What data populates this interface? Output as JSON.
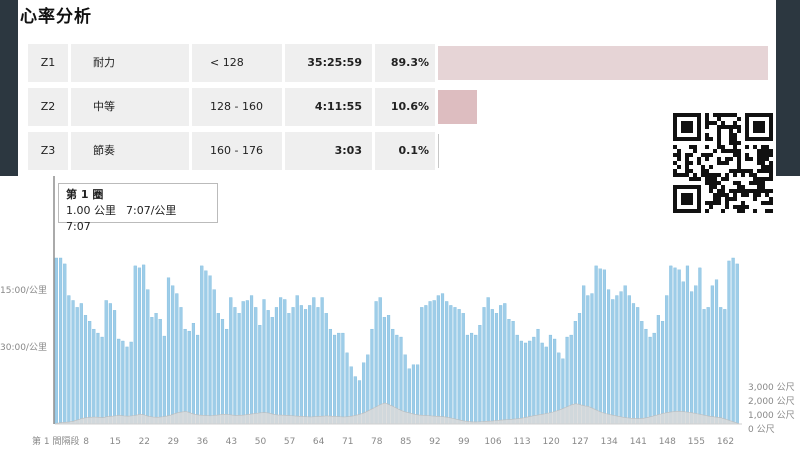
{
  "section_title": "心率分析",
  "zones": [
    {
      "zone": "Z1",
      "name": "耐力",
      "range": "< 128",
      "time": "35:25:59",
      "percent": "89.3%",
      "share": 0.893
    },
    {
      "zone": "Z2",
      "name": "中等",
      "range": "128 - 160",
      "time": "4:11:55",
      "percent": "10.6%",
      "share": 0.106
    },
    {
      "zone": "Z3",
      "name": "節奏",
      "range": "160 - 176",
      "time": "3:03",
      "percent": "0.1%",
      "share": 0.001
    }
  ],
  "tooltip": {
    "title": "第 1 圈",
    "distance": "1.00 公里",
    "pace": "7:07/公里",
    "time": "7:07"
  },
  "colors": {
    "bar": "#9ecde8",
    "bar_edge": "#6fb3da",
    "elevation": "#d9d9d9",
    "frame": "#2c3740"
  },
  "chart_data": {
    "type": "bar",
    "y_axis_left_labels": [
      "15:00/公里",
      "30:00/公里"
    ],
    "y_axis_right_labels": [
      "3,000 公尺",
      "2,000 公尺",
      "1,000 公尺",
      "0 公尺"
    ],
    "x_first_label": "第 1 間隔段",
    "x_tick_labels": [
      "8",
      "15",
      "22",
      "29",
      "36",
      "43",
      "50",
      "57",
      "64",
      "71",
      "78",
      "85",
      "92",
      "99",
      "106",
      "113",
      "120",
      "127",
      "134",
      "141",
      "148",
      "155",
      "162"
    ],
    "x_tick_values": [
      8,
      15,
      22,
      29,
      36,
      43,
      50,
      57,
      64,
      71,
      78,
      85,
      92,
      99,
      106,
      113,
      120,
      127,
      134,
      141,
      148,
      155,
      162
    ],
    "ylim_elevation": [
      0,
      3000
    ],
    "series": [
      {
        "values": [
          168,
          168,
          162,
          130,
          125,
          118,
          122,
          110,
          104,
          96,
          92,
          88,
          125,
          122,
          115,
          86,
          84,
          78,
          83,
          160,
          158,
          161,
          136,
          108,
          112,
          106,
          89,
          148,
          140,
          132,
          118,
          96,
          94,
          102,
          90,
          160,
          155,
          150,
          136,
          112,
          106,
          96,
          128,
          118,
          112,
          124,
          125,
          130,
          118,
          100,
          126,
          115,
          108,
          118,
          128,
          126,
          112,
          118,
          130,
          120,
          116,
          120,
          128,
          118,
          128,
          112,
          96,
          90,
          92,
          92,
          72,
          58,
          48,
          44,
          62,
          70,
          96,
          124,
          128,
          108,
          110,
          96,
          90,
          88,
          70,
          56,
          60,
          60,
          118,
          120,
          124,
          125,
          130,
          132,
          124,
          120,
          118,
          116,
          112,
          90,
          92,
          90,
          100,
          118,
          128,
          116,
          112,
          120,
          122,
          106,
          104,
          90,
          84,
          82,
          84,
          88,
          96,
          82,
          78,
          90,
          86,
          72,
          66,
          88,
          90,
          104,
          112,
          140,
          130,
          132,
          160,
          157,
          156,
          136,
          126,
          130,
          134,
          140,
          130,
          122,
          118,
          104,
          96,
          88,
          92,
          110,
          104,
          130,
          160,
          158,
          156,
          144,
          160,
          134,
          140,
          158,
          116,
          118,
          140,
          146,
          118,
          116,
          165,
          168,
          162
        ],
        "elevation": [
          50,
          100,
          120,
          150,
          200,
          300,
          400,
          450,
          480,
          500,
          480,
          450,
          520,
          550,
          580,
          620,
          580,
          560,
          580,
          620,
          700,
          650,
          550,
          500,
          480,
          500,
          540,
          600,
          700,
          800,
          850,
          900,
          800,
          700,
          650,
          620,
          600,
          580,
          620,
          650,
          700,
          680,
          650,
          600,
          620,
          640,
          680,
          720,
          760,
          800,
          820,
          780,
          700,
          650,
          640,
          620,
          600,
          580,
          560,
          540,
          520,
          500,
          520,
          540,
          560,
          580,
          560,
          540,
          520,
          500,
          520,
          560,
          620,
          700,
          800,
          950,
          1100,
          1250,
          1400,
          1500,
          1380,
          1250,
          1100,
          950,
          850,
          780,
          700,
          650,
          620,
          600,
          580,
          560,
          540,
          520,
          480,
          420,
          350,
          280,
          220,
          180,
          150,
          150,
          160,
          180,
          200,
          220,
          250,
          280,
          300,
          320,
          350,
          380,
          420,
          480,
          540,
          600,
          650,
          700,
          760,
          820,
          900,
          1000,
          1120,
          1250,
          1380,
          1450,
          1380,
          1300,
          1250,
          1120,
          980,
          850,
          760,
          680,
          620,
          560,
          500,
          450,
          420,
          400,
          380,
          400,
          450,
          520,
          600,
          680,
          760,
          820,
          860,
          900,
          900,
          880,
          840,
          800,
          740,
          680,
          620,
          560,
          520,
          480,
          440
        ]
      }
    ]
  }
}
